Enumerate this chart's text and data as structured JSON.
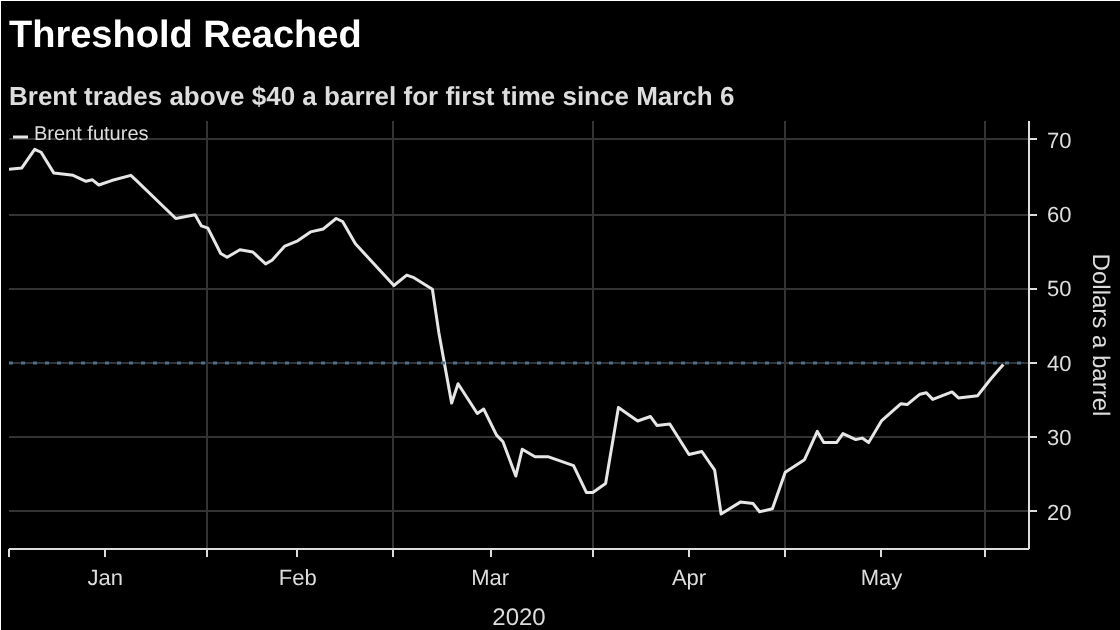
{
  "chart_data": {
    "type": "line",
    "title": "Threshold Reached",
    "subtitle": "Brent trades above $40 a barrel for first time since March 6",
    "xlabel": "2020",
    "ylabel": "Dollars a barrel",
    "x": [
      "2020-01-01",
      "2020-01-03",
      "2020-01-05",
      "2020-01-06",
      "2020-01-08",
      "2020-01-11",
      "2020-01-13",
      "2020-01-14",
      "2020-01-15",
      "2020-01-17",
      "2020-01-20",
      "2020-01-21",
      "2020-01-27",
      "2020-01-30",
      "2020-01-31",
      "2020-02-01",
      "2020-02-03",
      "2020-02-04",
      "2020-02-06",
      "2020-02-08",
      "2020-02-10",
      "2020-02-11",
      "2020-02-13",
      "2020-02-15",
      "2020-02-17",
      "2020-02-19",
      "2020-02-21",
      "2020-02-22",
      "2020-02-24",
      "2020-03-01",
      "2020-03-03",
      "2020-03-04",
      "2020-03-07",
      "2020-03-08",
      "2020-03-10",
      "2020-03-11",
      "2020-03-14",
      "2020-03-15",
      "2020-03-17",
      "2020-03-18",
      "2020-03-20",
      "2020-03-21",
      "2020-03-23",
      "2020-03-25",
      "2020-03-26",
      "2020-03-29",
      "2020-03-31",
      "2020-04-01",
      "2020-04-03",
      "2020-04-05",
      "2020-04-08",
      "2020-04-10",
      "2020-04-11",
      "2020-04-13",
      "2020-04-16",
      "2020-04-18",
      "2020-04-20",
      "2020-04-21",
      "2020-04-24",
      "2020-04-26",
      "2020-04-27",
      "2020-04-29",
      "2020-05-01",
      "2020-05-04",
      "2020-05-06",
      "2020-05-07",
      "2020-05-09",
      "2020-05-10",
      "2020-05-12",
      "2020-05-13",
      "2020-05-14",
      "2020-05-16",
      "2020-05-19",
      "2020-05-20",
      "2020-05-22",
      "2020-05-23",
      "2020-05-24",
      "2020-05-27",
      "2020-05-28",
      "2020-05-31",
      "2020-06-02",
      "2020-06-03",
      "2020-06-04"
    ],
    "series": [
      {
        "name": "Brent futures",
        "color": "#e6e6e6",
        "values": [
          66.0,
          66.2,
          68.7,
          68.3,
          65.5,
          65.2,
          64.4,
          64.6,
          63.9,
          64.5,
          65.2,
          64.4,
          59.4,
          59.9,
          58.4,
          58.1,
          54.7,
          54.2,
          55.2,
          54.9,
          53.3,
          53.8,
          55.7,
          56.4,
          57.6,
          58.0,
          59.4,
          59.0,
          56.0,
          50.4,
          51.8,
          51.5,
          49.9,
          44.1,
          34.6,
          37.2,
          33.2,
          33.8,
          30.3,
          29.4,
          24.8,
          28.4,
          27.4,
          27.4,
          27.1,
          26.2,
          22.6,
          22.6,
          23.8,
          34.0,
          32.2,
          32.8,
          31.6,
          31.8,
          27.7,
          28.1,
          25.6,
          19.7,
          21.3,
          21.1,
          20.0,
          20.4,
          25.3,
          27.0,
          30.8,
          29.3,
          29.3,
          30.5,
          29.7,
          29.9,
          29.3,
          32.2,
          34.5,
          34.4,
          35.8,
          36.0,
          35.1,
          36.1,
          35.3,
          35.6,
          37.8,
          38.8,
          39.8
        ]
      }
    ],
    "xlim": [
      "2020-01-01",
      "2020-06-08"
    ],
    "xticks": [
      {
        "value": "2020-01-01",
        "label": null
      },
      {
        "value": "2020-01-16",
        "label": "Jan"
      },
      {
        "value": "2020-02-01",
        "label": null
      },
      {
        "value": "2020-02-15",
        "label": "Feb"
      },
      {
        "value": "2020-03-01",
        "label": null
      },
      {
        "value": "2020-03-16",
        "label": "Mar"
      },
      {
        "value": "2020-04-01",
        "label": null
      },
      {
        "value": "2020-04-16",
        "label": "Apr"
      },
      {
        "value": "2020-05-01",
        "label": null
      },
      {
        "value": "2020-05-16",
        "label": "May"
      },
      {
        "value": "2020-06-01",
        "label": null
      }
    ],
    "ylim": [
      15,
      72.5
    ],
    "yticks": [
      20,
      30,
      40,
      50,
      60,
      70
    ],
    "ref_lines": [
      {
        "axis": "y",
        "value": 40,
        "color": "#4f6f8f",
        "line_style": "dotted"
      }
    ],
    "grid": true,
    "legend": "top left",
    "marker": "none",
    "line_style": "solid"
  }
}
